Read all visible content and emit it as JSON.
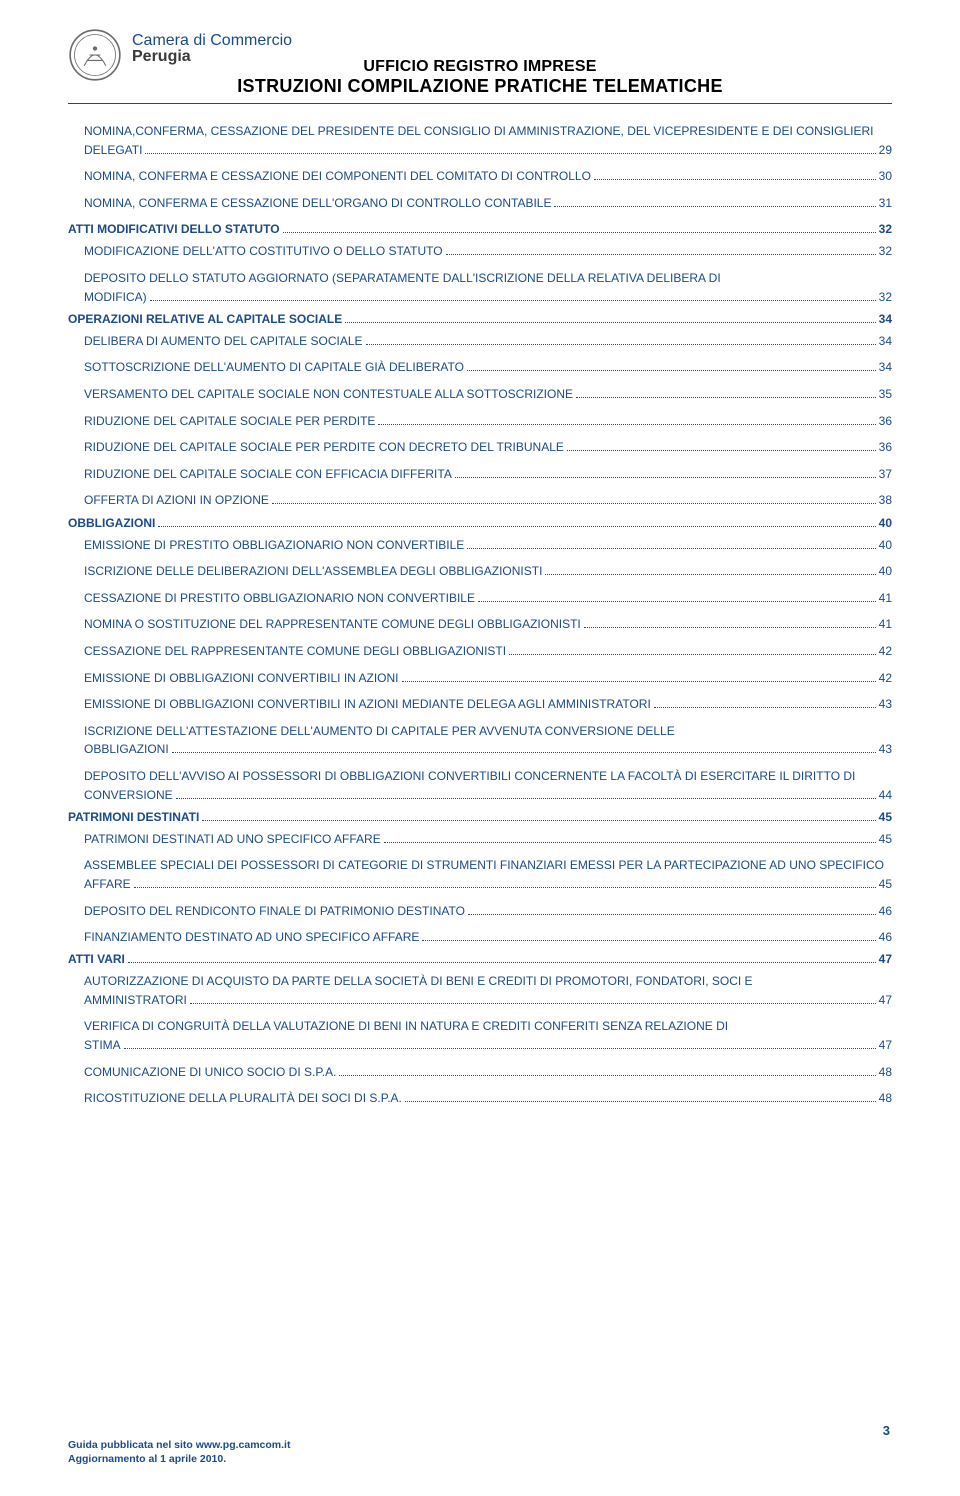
{
  "header": {
    "org_line1": "Camera di Commercio",
    "org_line2": "Perugia",
    "title1": "UFFICIO REGISTRO IMPRESE",
    "title2": "ISTRUZIONI COMPILAZIONE PRATICHE TELEMATICHE"
  },
  "toc": [
    {
      "lvl": 0,
      "multi": true,
      "label": "NOMINA,CONFERMA, CESSAZIONE DEL PRESIDENTE DEL CONSIGLIO DI AMMINISTRAZIONE, DEL VICEPRESIDENTE  E DEI CONSIGLIERI DELEGATI",
      "page": "29"
    },
    {
      "lvl": 0,
      "label": "NOMINA, CONFERMA E CESSAZIONE DEI COMPONENTI DEL COMITATO DI CONTROLLO",
      "page": "30"
    },
    {
      "lvl": 0,
      "label": "NOMINA, CONFERMA E CESSAZIONE DELL'ORGANO DI CONTROLLO CONTABILE",
      "page": "31"
    },
    {
      "lvl": 1,
      "label": "ATTI MODIFICATIVI DELLO STATUTO",
      "page": "32"
    },
    {
      "lvl": 2,
      "label": "MODIFICAZIONE DELL'ATTO COSTITUTIVO O DELLO STATUTO",
      "page": "32"
    },
    {
      "lvl": 2,
      "multi": true,
      "label": "DEPOSITO DELLO STATUTO AGGIORNATO (SEPARATAMENTE DALL'ISCRIZIONE DELLA RELATIVA DELIBERA DI MODIFICA)",
      "page": "32"
    },
    {
      "lvl": 1,
      "label": "OPERAZIONI RELATIVE AL CAPITALE SOCIALE",
      "page": "34"
    },
    {
      "lvl": 2,
      "label": "DELIBERA DI AUMENTO DEL CAPITALE SOCIALE",
      "page": "34"
    },
    {
      "lvl": 2,
      "label": "SOTTOSCRIZIONE DELL'AUMENTO DI CAPITALE GIÀ DELIBERATO",
      "page": "34"
    },
    {
      "lvl": 2,
      "label": "VERSAMENTO DEL CAPITALE SOCIALE NON CONTESTUALE ALLA SOTTOSCRIZIONE",
      "page": "35"
    },
    {
      "lvl": 2,
      "label": "RIDUZIONE DEL CAPITALE SOCIALE PER PERDITE",
      "page": "36"
    },
    {
      "lvl": 2,
      "label": "RIDUZIONE DEL CAPITALE SOCIALE PER PERDITE CON DECRETO DEL  TRIBUNALE",
      "page": "36"
    },
    {
      "lvl": 2,
      "label": "RIDUZIONE DEL CAPITALE SOCIALE CON EFFICACIA DIFFERITA",
      "page": "37"
    },
    {
      "lvl": 2,
      "label": "OFFERTA DI AZIONI IN OPZIONE",
      "page": "38"
    },
    {
      "lvl": 1,
      "label": "OBBLIGAZIONI",
      "page": "40"
    },
    {
      "lvl": 2,
      "label": "EMISSIONE DI PRESTITO  OBBLIGAZIONARIO NON CONVERTIBILE",
      "page": "40"
    },
    {
      "lvl": 2,
      "label": "ISCRIZIONE DELLE DELIBERAZIONI DELL'ASSEMBLEA DEGLI OBBLIGAZIONISTI",
      "page": "40"
    },
    {
      "lvl": 2,
      "label": "CESSAZIONE DI PRESTITO  OBBLIGAZIONARIO NON CONVERTIBILE",
      "page": "41"
    },
    {
      "lvl": 2,
      "label": "NOMINA O SOSTITUZIONE DEL RAPPRESENTANTE COMUNE DEGLI OBBLIGAZIONISTI",
      "page": "41"
    },
    {
      "lvl": 2,
      "label": "CESSAZIONE DEL RAPPRESENTANTE COMUNE DEGLI OBBLIGAZIONISTI",
      "page": "42"
    },
    {
      "lvl": 2,
      "label": "EMISSIONE DI OBBLIGAZIONI CONVERTIBILI IN AZIONI",
      "page": "42"
    },
    {
      "lvl": 2,
      "label": "EMISSIONE DI OBBLIGAZIONI CONVERTIBILI IN AZIONI MEDIANTE DELEGA AGLI AMMINISTRATORI",
      "page": "43"
    },
    {
      "lvl": 2,
      "multi": true,
      "label": "ISCRIZIONE DELL'ATTESTAZIONE DELL'AUMENTO DI CAPITALE PER AVVENUTA CONVERSIONE DELLE OBBLIGAZIONI",
      "page": "43"
    },
    {
      "lvl": 2,
      "multi": true,
      "label": "DEPOSITO DELL'AVVISO AI POSSESSORI DI OBBLIGAZIONI CONVERTIBILI CONCERNENTE LA FACOLTÀ DI ESERCITARE IL DIRITTO DI CONVERSIONE",
      "page": "44"
    },
    {
      "lvl": 1,
      "label": "PATRIMONI DESTINATI",
      "page": "45"
    },
    {
      "lvl": 2,
      "label": "PATRIMONI DESTINATI AD UNO SPECIFICO AFFARE",
      "page": "45"
    },
    {
      "lvl": 2,
      "multi": true,
      "label": "ASSEMBLEE SPECIALI DEI POSSESSORI DI CATEGORIE DI STRUMENTI FINANZIARI EMESSI PER LA PARTECIPAZIONE AD UNO SPECIFICO AFFARE",
      "page": "45"
    },
    {
      "lvl": 2,
      "label": "DEPOSITO DEL RENDICONTO FINALE DI PATRIMONIO DESTINATO",
      "page": "46"
    },
    {
      "lvl": 2,
      "label": "FINANZIAMENTO DESTINATO AD UNO SPECIFICO AFFARE",
      "page": "46"
    },
    {
      "lvl": 1,
      "label": "ATTI VARI",
      "page": "47"
    },
    {
      "lvl": 2,
      "multi": true,
      "label": "AUTORIZZAZIONE DI ACQUISTO DA PARTE DELLA SOCIETÀ DI BENI E CREDITI DI  PROMOTORI, FONDATORI, SOCI E AMMINISTRATORI",
      "page": "47"
    },
    {
      "lvl": 2,
      "multi": true,
      "label": "VERIFICA DI CONGRUITÀ DELLA VALUTAZIONE DI BENI IN NATURA E CREDITI CONFERITI SENZA RELAZIONE DI STIMA",
      "page": "47"
    },
    {
      "lvl": 2,
      "label": "COMUNICAZIONE DI UNICO SOCIO DI S.P.A.",
      "page": "48"
    },
    {
      "lvl": 2,
      "label": "RICOSTITUZIONE DELLA PLURALITÀ DEI SOCI DI S.P.A.",
      "page": "48"
    }
  ],
  "footer": {
    "line1": "Guida pubblicata nel sito www.pg.camcom.it",
    "line2": "Aggiornamento al 1 aprile 2010."
  },
  "page_number": "3"
}
